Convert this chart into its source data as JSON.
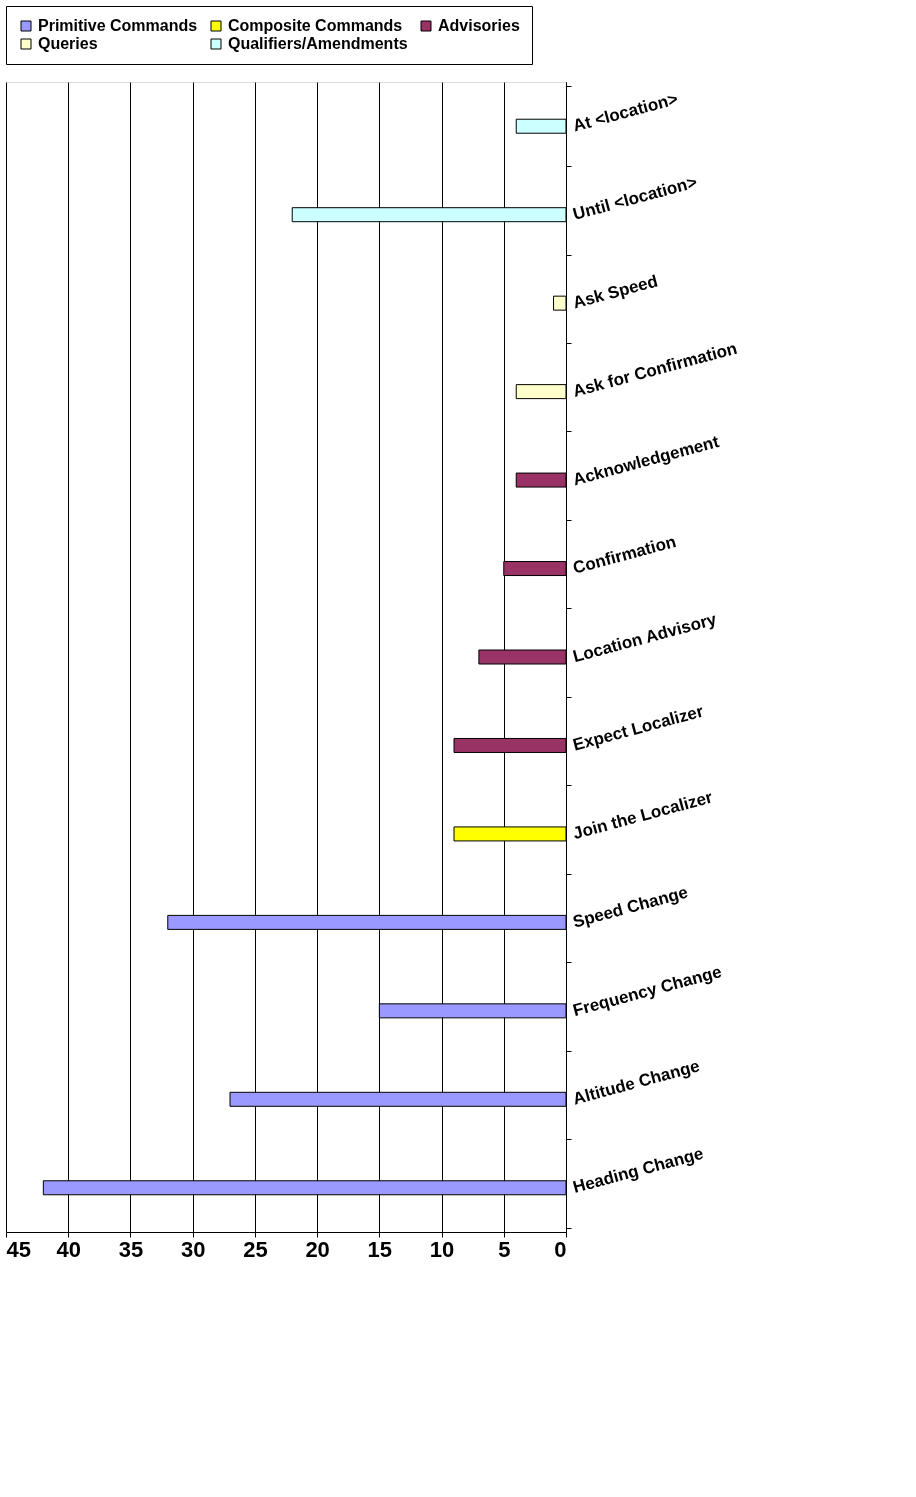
{
  "chart_data": {
    "type": "bar",
    "orientation": "horizontal",
    "categories": [
      "At <location>",
      "Until <location>",
      "Ask Speed",
      "Ask for Confirmation",
      "Acknowledgement",
      "Confirmation",
      "Location Advisory",
      "Expect Localizer",
      "Join the Localizer",
      "Speed Change",
      "Frequency Change",
      "Altitude Change",
      "Heading Change"
    ],
    "series": [
      {
        "name": "Primitive Commands",
        "color": "#9999ff",
        "values": [
          null,
          null,
          null,
          null,
          null,
          null,
          null,
          null,
          null,
          32,
          15,
          27,
          42
        ]
      },
      {
        "name": "Composite Commands",
        "color": "#ffff00",
        "values": [
          null,
          null,
          null,
          null,
          null,
          null,
          null,
          null,
          9,
          null,
          null,
          null,
          null
        ]
      },
      {
        "name": "Advisories",
        "color": "#993366",
        "values": [
          null,
          null,
          null,
          null,
          4,
          5,
          7,
          9,
          null,
          null,
          null,
          null,
          null
        ]
      },
      {
        "name": "Queries",
        "color": "#ffffcc",
        "values": [
          null,
          null,
          1,
          4,
          null,
          null,
          null,
          null,
          null,
          null,
          null,
          null,
          null
        ]
      },
      {
        "name": "Qualifiers/Amendments",
        "color": "#ccffff",
        "values": [
          4,
          22,
          null,
          null,
          null,
          null,
          null,
          null,
          null,
          null,
          null,
          null,
          null
        ]
      }
    ],
    "xlim": [
      45,
      0
    ],
    "xticks": [
      0,
      5,
      10,
      15,
      20,
      25,
      30,
      35,
      40,
      45
    ],
    "grid": "x",
    "legend": "top"
  }
}
